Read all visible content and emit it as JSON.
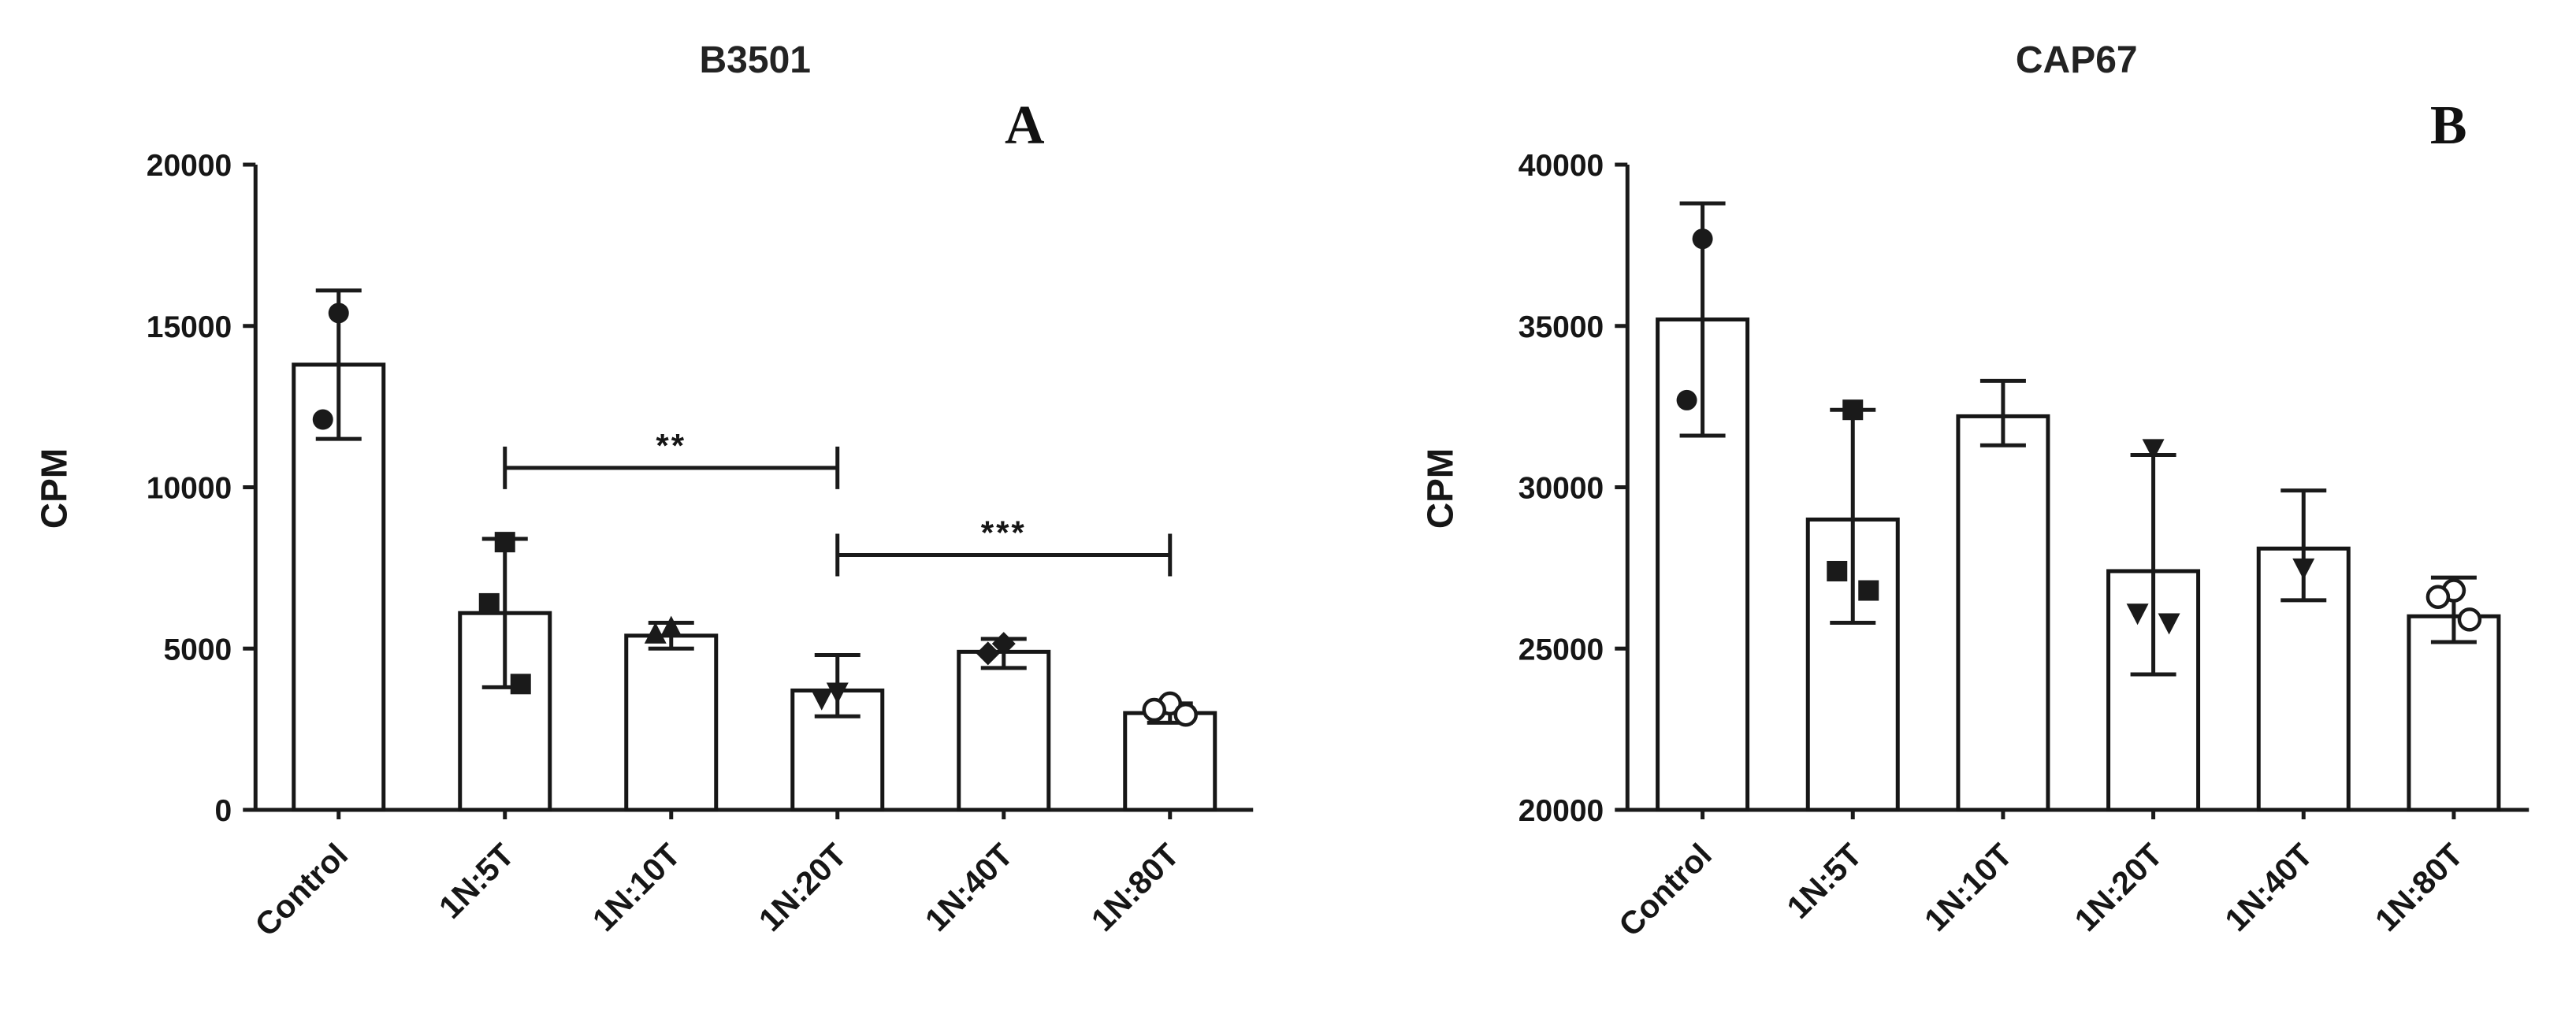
{
  "figure": {
    "background": "#ffffff",
    "ink_color": "#1a1a1a"
  },
  "chart_data": [
    {
      "type": "bar",
      "panel_label": "A",
      "title": "B3501",
      "ylabel": "CPM",
      "ylim": [
        0,
        20000
      ],
      "yticks": [
        0,
        5000,
        10000,
        15000,
        20000
      ],
      "categories": [
        "Control",
        "1N:5T",
        "1N:10T",
        "1N:20T",
        "1N:40T",
        "1N:80T"
      ],
      "values": [
        13800,
        6100,
        5400,
        3700,
        4900,
        3000
      ],
      "errors": [
        [
          11500,
          16100
        ],
        [
          3800,
          8400
        ],
        [
          5000,
          5800
        ],
        [
          2900,
          4800
        ],
        [
          4400,
          5300
        ],
        [
          2700,
          3300
        ]
      ],
      "points": [
        {
          "category": "Control",
          "marker": "circle-filled",
          "values": [
            15400,
            12100
          ]
        },
        {
          "category": "1N:5T",
          "marker": "square-filled",
          "values": [
            8300,
            6400,
            3900
          ]
        },
        {
          "category": "1N:10T",
          "marker": "triangle-up-filled",
          "values": [
            5650,
            5450
          ]
        },
        {
          "category": "1N:20T",
          "marker": "triangle-down-filled",
          "values": [
            3650,
            3450
          ]
        },
        {
          "category": "1N:40T",
          "marker": "diamond-filled",
          "values": [
            5150,
            4850
          ]
        },
        {
          "category": "1N:80T",
          "marker": "circle-open",
          "values": [
            3300,
            3100,
            2950
          ]
        }
      ],
      "significance_brackets": [
        {
          "from": "1N:5T",
          "to": "1N:20T",
          "y": 10600,
          "label": "**"
        },
        {
          "from": "1N:20T",
          "to": "1N:80T",
          "y": 7900,
          "label": "***"
        }
      ],
      "bar_fill": "#ffffff",
      "bar_stroke": "#161616",
      "grid": false,
      "legend": "none"
    },
    {
      "type": "bar",
      "panel_label": "B",
      "title": "CAP67",
      "ylabel": "CPM",
      "ylim": [
        20000,
        40000
      ],
      "yticks": [
        20000,
        25000,
        30000,
        35000,
        40000
      ],
      "categories": [
        "Control",
        "1N:5T",
        "1N:10T",
        "1N:20T",
        "1N:40T",
        "1N:80T"
      ],
      "values": [
        35200,
        29000,
        32200,
        27400,
        28100,
        26000
      ],
      "errors": [
        [
          31600,
          38800
        ],
        [
          25800,
          32400
        ],
        [
          31300,
          33300
        ],
        [
          24200,
          31000
        ],
        [
          26500,
          29900
        ],
        [
          25200,
          27200
        ]
      ],
      "points": [
        {
          "category": "Control",
          "marker": "circle-filled",
          "values": [
            37700,
            32700
          ]
        },
        {
          "category": "1N:5T",
          "marker": "square-filled",
          "values": [
            32400,
            27400,
            26800
          ]
        },
        {
          "category": "1N:20T",
          "marker": "triangle-down-filled",
          "values": [
            31200,
            26100,
            25800
          ]
        },
        {
          "category": "1N:40T",
          "marker": "triangle-down-filled",
          "values": [
            27500
          ]
        },
        {
          "category": "1N:80T",
          "marker": "circle-open",
          "values": [
            26800,
            26600,
            25900
          ]
        }
      ],
      "significance_brackets": [],
      "bar_fill": "#ffffff",
      "bar_stroke": "#161616",
      "grid": false,
      "legend": "none"
    }
  ]
}
